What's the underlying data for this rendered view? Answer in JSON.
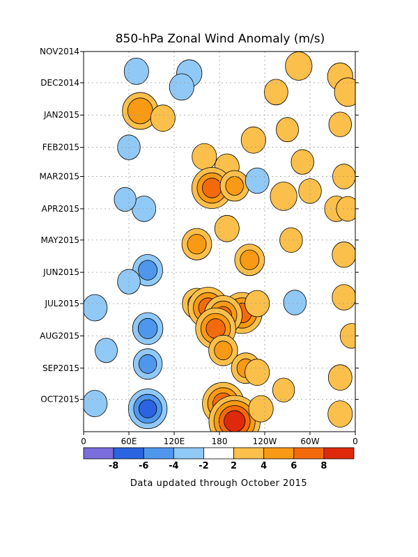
{
  "chart_data": {
    "type": "heatmap",
    "title": "850-hPa Zonal Wind Anomaly (m/s)",
    "xlabel": "",
    "ylabel": "",
    "x_ticks": [
      "0",
      "60E",
      "120E",
      "180",
      "120W",
      "60W",
      "0"
    ],
    "x_range_lon_deg": [
      0,
      360
    ],
    "y_ticks": [
      "NOV2014",
      "DEC2014",
      "JAN2015",
      "FEB2015",
      "MAR2015",
      "APR2015",
      "MAY2015",
      "JUN2015",
      "JUL2015",
      "AUG2015",
      "SEP2015",
      "OCT2015"
    ],
    "y_range": [
      "2014-11-01",
      "2015-10-31"
    ],
    "grid": "dotted",
    "colorbar": {
      "labels": [
        "-8",
        "-6",
        "-4",
        "-2",
        "2",
        "4",
        "6",
        "8"
      ],
      "levels": [
        -8,
        -6,
        -4,
        -2,
        2,
        4,
        6,
        8
      ],
      "colors": [
        "#7b6ddb",
        "#2a64e0",
        "#4f97ec",
        "#91c9f6",
        "#ffffff",
        "#fbc04b",
        "#f99a14",
        "#f36a0c",
        "#de2a0a"
      ]
    },
    "anomalies": [
      {
        "lon": 285,
        "date": "2014-11-15",
        "value": 3.5
      },
      {
        "lon": 340,
        "date": "2014-11-25",
        "value": 3.2
      },
      {
        "lon": 70,
        "date": "2014-11-20",
        "value": -3
      },
      {
        "lon": 140,
        "date": "2014-11-22",
        "value": -3.2
      },
      {
        "lon": 130,
        "date": "2014-12-05",
        "value": -3
      },
      {
        "lon": 255,
        "date": "2014-12-10",
        "value": 2.8
      },
      {
        "lon": 350,
        "date": "2014-12-10",
        "value": 3.5
      },
      {
        "lon": 75,
        "date": "2014-12-28",
        "value": 5.5
      },
      {
        "lon": 105,
        "date": "2015-01-04",
        "value": 3
      },
      {
        "lon": 225,
        "date": "2015-01-25",
        "value": 3
      },
      {
        "lon": 270,
        "date": "2015-01-15",
        "value": 2.5
      },
      {
        "lon": 340,
        "date": "2015-01-10",
        "value": 2.6
      },
      {
        "lon": 160,
        "date": "2015-02-10",
        "value": 3
      },
      {
        "lon": 60,
        "date": "2015-02-01",
        "value": -2.6
      },
      {
        "lon": 190,
        "date": "2015-02-20",
        "value": 3
      },
      {
        "lon": 290,
        "date": "2015-02-15",
        "value": 2.6
      },
      {
        "lon": 170,
        "date": "2015-03-12",
        "value": 6.5
      },
      {
        "lon": 200,
        "date": "2015-03-10",
        "value": 4
      },
      {
        "lon": 265,
        "date": "2015-03-20",
        "value": 3.5
      },
      {
        "lon": 230,
        "date": "2015-03-05",
        "value": -2.8
      },
      {
        "lon": 300,
        "date": "2015-03-15",
        "value": 2.6
      },
      {
        "lon": 345,
        "date": "2015-03-01",
        "value": 2.6
      },
      {
        "lon": 335,
        "date": "2015-04-01",
        "value": 2.8
      },
      {
        "lon": 350,
        "date": "2015-04-01",
        "value": 2.6
      },
      {
        "lon": 80,
        "date": "2015-04-01",
        "value": -2.8
      },
      {
        "lon": 55,
        "date": "2015-03-23",
        "value": -2.4
      },
      {
        "lon": 150,
        "date": "2015-05-05",
        "value": 4.2
      },
      {
        "lon": 190,
        "date": "2015-04-20",
        "value": 3
      },
      {
        "lon": 220,
        "date": "2015-05-20",
        "value": 4.2
      },
      {
        "lon": 275,
        "date": "2015-05-01",
        "value": 2.6
      },
      {
        "lon": 345,
        "date": "2015-05-15",
        "value": 2.8
      },
      {
        "lon": 85,
        "date": "2015-05-30",
        "value": -4.2
      },
      {
        "lon": 60,
        "date": "2015-06-10",
        "value": -2.6
      },
      {
        "lon": 150,
        "date": "2015-07-01",
        "value": 4
      },
      {
        "lon": 165,
        "date": "2015-07-05",
        "value": 6.5
      },
      {
        "lon": 210,
        "date": "2015-07-10",
        "value": 6.5
      },
      {
        "lon": 185,
        "date": "2015-07-12",
        "value": 6
      },
      {
        "lon": 175,
        "date": "2015-07-25",
        "value": 6.5
      },
      {
        "lon": 230,
        "date": "2015-07-01",
        "value": 3
      },
      {
        "lon": 15,
        "date": "2015-07-05",
        "value": -3
      },
      {
        "lon": 85,
        "date": "2015-07-25",
        "value": -4.3
      },
      {
        "lon": 280,
        "date": "2015-06-30",
        "value": -2.6
      },
      {
        "lon": 345,
        "date": "2015-06-25",
        "value": 2.8
      },
      {
        "lon": 355,
        "date": "2015-08-01",
        "value": 2.6
      },
      {
        "lon": 185,
        "date": "2015-08-15",
        "value": 4
      },
      {
        "lon": 215,
        "date": "2015-09-01",
        "value": 4
      },
      {
        "lon": 85,
        "date": "2015-08-28",
        "value": -4
      },
      {
        "lon": 30,
        "date": "2015-08-15",
        "value": -2.5
      },
      {
        "lon": 340,
        "date": "2015-09-10",
        "value": 2.8
      },
      {
        "lon": 230,
        "date": "2015-09-05",
        "value": 3
      },
      {
        "lon": 185,
        "date": "2015-10-05",
        "value": 6.8
      },
      {
        "lon": 200,
        "date": "2015-10-22",
        "value": 9
      },
      {
        "lon": 235,
        "date": "2015-10-10",
        "value": 3
      },
      {
        "lon": 85,
        "date": "2015-10-10",
        "value": -6.2
      },
      {
        "lon": 15,
        "date": "2015-10-05",
        "value": -3
      },
      {
        "lon": 340,
        "date": "2015-10-15",
        "value": 3
      },
      {
        "lon": 265,
        "date": "2015-09-22",
        "value": 2.4
      }
    ]
  },
  "footer": "Data updated through October 2015"
}
